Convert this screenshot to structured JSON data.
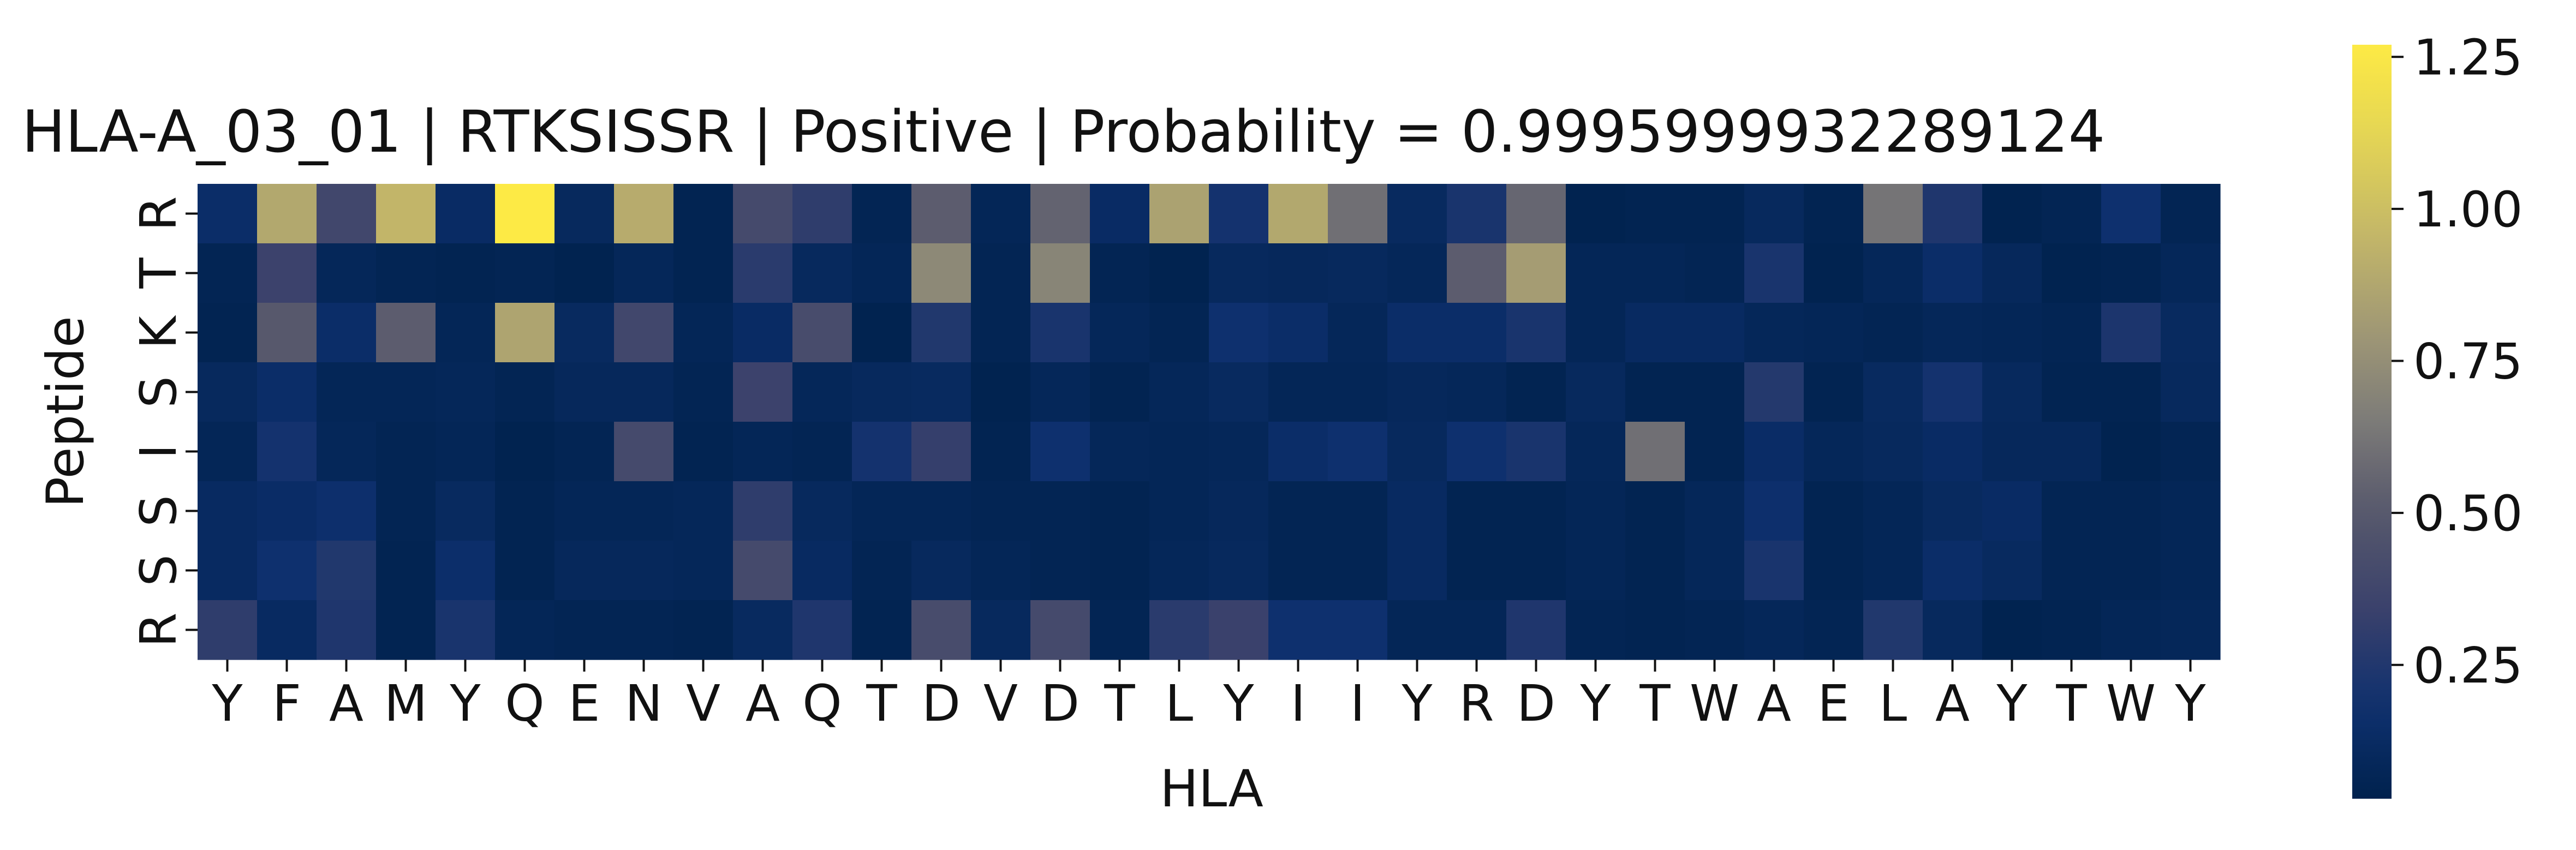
{
  "chart_data": {
    "type": "heatmap",
    "title": "HLA-A_03_01 | RTKSISSR | Positive | Probability = 0.9995999932289124",
    "xlabel": "HLA",
    "ylabel": "Peptide",
    "x_tick_labels": [
      "Y",
      "F",
      "A",
      "M",
      "Y",
      "Q",
      "E",
      "N",
      "V",
      "A",
      "Q",
      "T",
      "D",
      "V",
      "D",
      "T",
      "L",
      "Y",
      "I",
      "I",
      "Y",
      "R",
      "D",
      "Y",
      "T",
      "W",
      "A",
      "E",
      "L",
      "A",
      "Y",
      "T",
      "W",
      "Y"
    ],
    "y_tick_labels": [
      "R",
      "T",
      "K",
      "S",
      "I",
      "S",
      "S",
      "R"
    ],
    "colormap": "cividis",
    "color_range": [
      0.03,
      1.27
    ],
    "colorbar_ticks": [
      {
        "value": 0.25,
        "label": "0.25"
      },
      {
        "value": 0.5,
        "label": "0.50"
      },
      {
        "value": 0.75,
        "label": "0.75"
      },
      {
        "value": 1.0,
        "label": "1.00"
      },
      {
        "value": 1.25,
        "label": "1.25"
      }
    ],
    "values": [
      [
        0.15,
        0.88,
        0.38,
        0.95,
        0.13,
        1.27,
        0.1,
        0.9,
        0.05,
        0.4,
        0.3,
        0.06,
        0.52,
        0.07,
        0.55,
        0.13,
        0.85,
        0.2,
        0.88,
        0.6,
        0.11,
        0.22,
        0.56,
        0.04,
        0.05,
        0.05,
        0.1,
        0.05,
        0.62,
        0.24,
        0.04,
        0.06,
        0.18,
        0.06
      ],
      [
        0.06,
        0.35,
        0.08,
        0.06,
        0.05,
        0.06,
        0.04,
        0.08,
        0.05,
        0.28,
        0.1,
        0.07,
        0.72,
        0.06,
        0.7,
        0.06,
        0.04,
        0.1,
        0.09,
        0.1,
        0.08,
        0.52,
        0.82,
        0.07,
        0.07,
        0.06,
        0.22,
        0.04,
        0.08,
        0.15,
        0.09,
        0.04,
        0.05,
        0.08
      ],
      [
        0.05,
        0.5,
        0.15,
        0.52,
        0.07,
        0.86,
        0.11,
        0.38,
        0.07,
        0.13,
        0.42,
        0.04,
        0.25,
        0.06,
        0.22,
        0.08,
        0.06,
        0.18,
        0.15,
        0.08,
        0.15,
        0.15,
        0.22,
        0.07,
        0.12,
        0.12,
        0.08,
        0.07,
        0.06,
        0.08,
        0.07,
        0.06,
        0.23,
        0.11
      ],
      [
        0.1,
        0.15,
        0.07,
        0.07,
        0.08,
        0.06,
        0.09,
        0.09,
        0.06,
        0.35,
        0.08,
        0.1,
        0.11,
        0.04,
        0.08,
        0.05,
        0.08,
        0.11,
        0.07,
        0.07,
        0.09,
        0.08,
        0.05,
        0.1,
        0.05,
        0.05,
        0.26,
        0.05,
        0.11,
        0.2,
        0.1,
        0.05,
        0.05,
        0.1
      ],
      [
        0.07,
        0.2,
        0.08,
        0.06,
        0.07,
        0.04,
        0.06,
        0.4,
        0.05,
        0.07,
        0.06,
        0.2,
        0.32,
        0.05,
        0.18,
        0.08,
        0.07,
        0.08,
        0.15,
        0.18,
        0.1,
        0.18,
        0.22,
        0.08,
        0.6,
        0.05,
        0.14,
        0.08,
        0.1,
        0.13,
        0.09,
        0.09,
        0.04,
        0.06
      ],
      [
        0.12,
        0.14,
        0.17,
        0.06,
        0.11,
        0.05,
        0.07,
        0.07,
        0.08,
        0.3,
        0.1,
        0.07,
        0.07,
        0.06,
        0.06,
        0.05,
        0.07,
        0.09,
        0.06,
        0.06,
        0.12,
        0.05,
        0.05,
        0.07,
        0.05,
        0.08,
        0.17,
        0.05,
        0.07,
        0.11,
        0.13,
        0.06,
        0.06,
        0.07
      ],
      [
        0.12,
        0.18,
        0.25,
        0.05,
        0.16,
        0.05,
        0.09,
        0.09,
        0.08,
        0.4,
        0.12,
        0.06,
        0.1,
        0.07,
        0.06,
        0.05,
        0.08,
        0.1,
        0.06,
        0.06,
        0.12,
        0.05,
        0.05,
        0.07,
        0.05,
        0.08,
        0.22,
        0.05,
        0.07,
        0.15,
        0.11,
        0.06,
        0.06,
        0.07
      ],
      [
        0.3,
        0.12,
        0.24,
        0.05,
        0.22,
        0.07,
        0.06,
        0.06,
        0.05,
        0.11,
        0.24,
        0.05,
        0.42,
        0.1,
        0.4,
        0.06,
        0.28,
        0.34,
        0.18,
        0.18,
        0.07,
        0.07,
        0.24,
        0.06,
        0.05,
        0.06,
        0.08,
        0.06,
        0.25,
        0.1,
        0.04,
        0.05,
        0.07,
        0.08
      ]
    ]
  }
}
